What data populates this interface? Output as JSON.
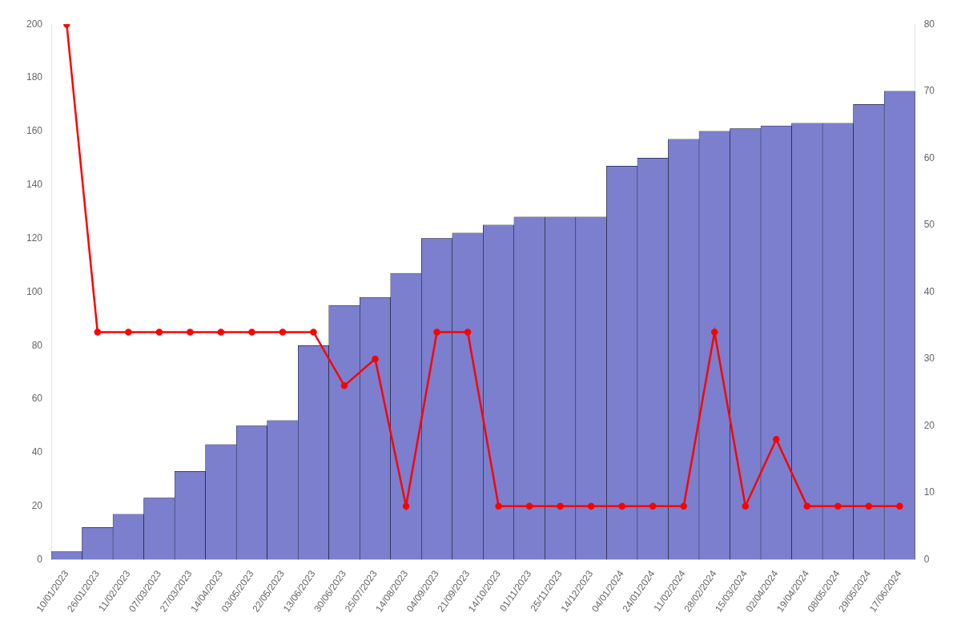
{
  "chart_data": {
    "type": "bar",
    "categories": [
      "10/01/2023",
      "26/01/2023",
      "11/02/2023",
      "07/03/2023",
      "27/03/2023",
      "14/04/2023",
      "03/05/2023",
      "22/05/2023",
      "13/06/2023",
      "30/06/2023",
      "25/07/2023",
      "14/08/2023",
      "04/09/2023",
      "21/09/2023",
      "14/10/2023",
      "01/11/2023",
      "25/11/2023",
      "14/12/2023",
      "04/01/2024",
      "24/01/2024",
      "11/02/2024",
      "28/02/2024",
      "15/03/2024",
      "02/04/2024",
      "19/04/2024",
      "08/05/2024",
      "29/05/2024",
      "17/06/2024"
    ],
    "series": [
      {
        "type": "bar",
        "color": "#7b7fce",
        "values": [
          3,
          12,
          17,
          23,
          33,
          43,
          50,
          52,
          80,
          95,
          98,
          107,
          120,
          122,
          125,
          128,
          128,
          128,
          147,
          150,
          157,
          160,
          161,
          162,
          163,
          163,
          170,
          175
        ]
      },
      {
        "type": "line",
        "color": "#ff0000",
        "marker": "circle",
        "values": [
          200,
          85,
          85,
          85,
          85,
          85,
          85,
          85,
          85,
          65,
          75,
          20,
          85,
          85,
          20,
          20,
          20,
          20,
          20,
          20,
          20,
          85,
          20,
          45,
          20,
          20,
          20,
          20
        ]
      }
    ],
    "ylim": [
      0,
      200
    ],
    "yticks": [
      0,
      20,
      40,
      60,
      80,
      100,
      120,
      140,
      160,
      180,
      200
    ],
    "y2lim": [
      0,
      80
    ],
    "y2ticks": [
      0,
      10,
      20,
      30,
      40,
      50,
      60,
      70,
      80
    ],
    "grid": false
  }
}
